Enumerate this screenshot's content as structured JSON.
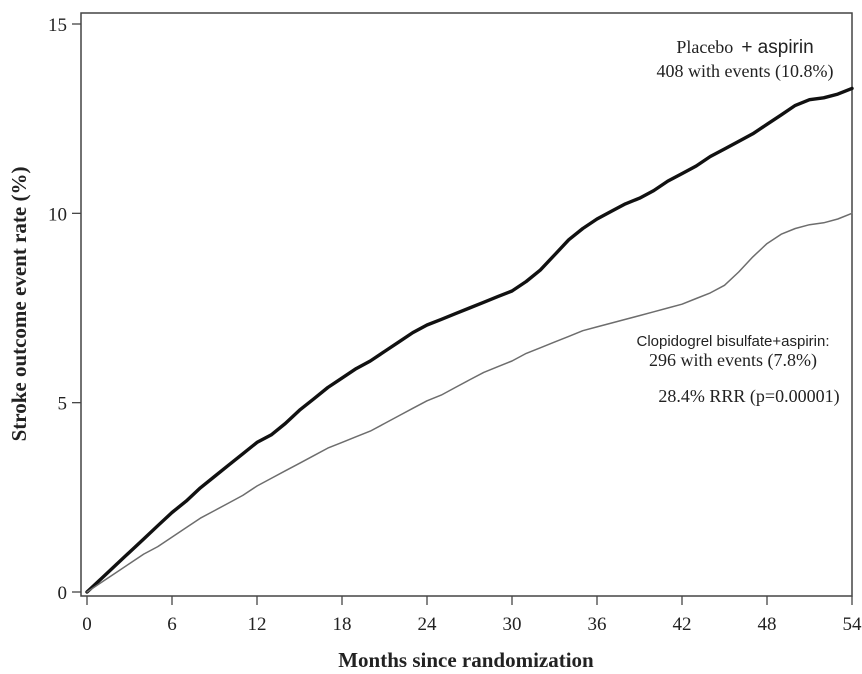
{
  "chart_data": {
    "type": "line",
    "xlabel": "Months since randomization",
    "ylabel": "Stroke outcome event rate (%)",
    "xlim": [
      0,
      54
    ],
    "ylim": [
      0,
      15
    ],
    "x_ticks": [
      0,
      6,
      12,
      18,
      24,
      30,
      36,
      42,
      48,
      54
    ],
    "y_ticks": [
      0,
      5,
      10,
      15
    ],
    "grid": false,
    "series": [
      {
        "name": "Placebo + aspirin",
        "color": "#111111",
        "x": [
          0,
          1,
          2,
          3,
          4,
          5,
          6,
          7,
          8,
          9,
          10,
          11,
          12,
          13,
          14,
          15,
          16,
          17,
          18,
          19,
          20,
          21,
          22,
          23,
          24,
          25,
          26,
          27,
          28,
          29,
          30,
          31,
          32,
          33,
          34,
          35,
          36,
          37,
          38,
          39,
          40,
          41,
          42,
          43,
          44,
          45,
          46,
          47,
          48,
          49,
          50,
          51,
          52,
          53,
          54
        ],
        "y": [
          0,
          0.35,
          0.7,
          1.05,
          1.4,
          1.75,
          2.1,
          2.4,
          2.75,
          3.05,
          3.35,
          3.65,
          3.95,
          4.15,
          4.45,
          4.8,
          5.1,
          5.4,
          5.65,
          5.9,
          6.1,
          6.35,
          6.6,
          6.85,
          7.05,
          7.2,
          7.35,
          7.5,
          7.65,
          7.8,
          7.95,
          8.2,
          8.5,
          8.9,
          9.3,
          9.6,
          9.85,
          10.05,
          10.25,
          10.4,
          10.6,
          10.85,
          11.05,
          11.25,
          11.5,
          11.7,
          11.9,
          12.1,
          12.35,
          12.6,
          12.85,
          13.0,
          13.05,
          13.15,
          13.3
        ]
      },
      {
        "name": "Clopidogrel bisulfate+aspirin",
        "color": "#6d6d6d",
        "x": [
          0,
          1,
          2,
          3,
          4,
          5,
          6,
          7,
          8,
          9,
          10,
          11,
          12,
          13,
          14,
          15,
          16,
          17,
          18,
          19,
          20,
          21,
          22,
          23,
          24,
          25,
          26,
          27,
          28,
          29,
          30,
          31,
          32,
          33,
          34,
          35,
          36,
          37,
          38,
          39,
          40,
          41,
          42,
          43,
          44,
          45,
          46,
          47,
          48,
          49,
          50,
          51,
          52,
          53,
          54
        ],
        "y": [
          0,
          0.25,
          0.5,
          0.75,
          1.0,
          1.2,
          1.45,
          1.7,
          1.95,
          2.15,
          2.35,
          2.55,
          2.8,
          3.0,
          3.2,
          3.4,
          3.6,
          3.8,
          3.95,
          4.1,
          4.25,
          4.45,
          4.65,
          4.85,
          5.05,
          5.2,
          5.4,
          5.6,
          5.8,
          5.95,
          6.1,
          6.3,
          6.45,
          6.6,
          6.75,
          6.9,
          7.0,
          7.1,
          7.2,
          7.3,
          7.4,
          7.5,
          7.6,
          7.75,
          7.9,
          8.1,
          8.45,
          8.85,
          9.2,
          9.45,
          9.6,
          9.7,
          9.75,
          9.85,
          10.0
        ]
      }
    ],
    "annotations": {
      "placebo_label_part1": "Placebo",
      "placebo_label_part2": "+ aspirin",
      "placebo_events": "408 with events (10.8%)",
      "clopidogrel_label": "Clopidogrel bisulfate+aspirin:",
      "clopidogrel_events": "296 with events (7.8%)",
      "rrr": "28.4% RRR (p=0.00001)"
    }
  }
}
